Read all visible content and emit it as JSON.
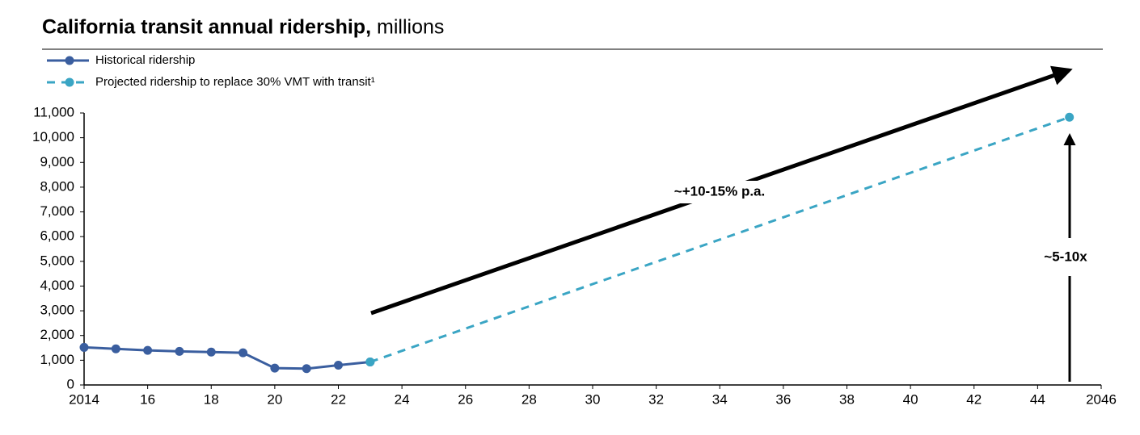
{
  "chart_data": {
    "type": "line",
    "title": "California transit annual ridership,",
    "subtitle": "millions",
    "xlim": [
      2014,
      2046
    ],
    "xticks": [
      2014,
      {
        "value": 2016,
        "label": "16"
      },
      {
        "value": 2018,
        "label": "18"
      },
      {
        "value": 2020,
        "label": "20"
      },
      {
        "value": 2022,
        "label": "22"
      },
      {
        "value": 2024,
        "label": "24"
      },
      {
        "value": 2026,
        "label": "26"
      },
      {
        "value": 2028,
        "label": "28"
      },
      {
        "value": 2030,
        "label": "30"
      },
      {
        "value": 2032,
        "label": "32"
      },
      {
        "value": 2034,
        "label": "34"
      },
      {
        "value": 2036,
        "label": "36"
      },
      {
        "value": 2038,
        "label": "38"
      },
      {
        "value": 2040,
        "label": "40"
      },
      {
        "value": 2042,
        "label": "42"
      },
      {
        "value": 2044,
        "label": "44"
      },
      2046
    ],
    "ylim": [
      0,
      11000
    ],
    "yticks": [
      0,
      {
        "value": 1000,
        "label": "1,000"
      },
      {
        "value": 2000,
        "label": "2,000"
      },
      {
        "value": 3000,
        "label": "3,000"
      },
      {
        "value": 4000,
        "label": "4,000"
      },
      {
        "value": 5000,
        "label": "5,000"
      },
      {
        "value": 6000,
        "label": "6,000"
      },
      {
        "value": 7000,
        "label": "7,000"
      },
      {
        "value": 8000,
        "label": "8,000"
      },
      {
        "value": 9000,
        "label": "9,000"
      },
      {
        "value": 10000,
        "label": "10,000"
      },
      {
        "value": 11000,
        "label": "11,000"
      }
    ],
    "grid": false,
    "series": [
      {
        "name": "Historical ridership",
        "color": "#3a5e9f",
        "dashed": false,
        "x": [
          2014,
          2015,
          2016,
          2017,
          2018,
          2019,
          2020,
          2021,
          2022,
          2023
        ],
        "values": [
          1520,
          1460,
          1400,
          1360,
          1330,
          1300,
          680,
          660,
          800,
          930
        ]
      },
      {
        "name": "Projected ridership to replace 30% VMT with transit¹",
        "color": "#3aa5c4",
        "dashed": true,
        "x": [
          2023,
          2045
        ],
        "values": [
          930,
          10830
        ]
      }
    ],
    "annotations": [
      "~+10-15% p.a.",
      "~5-10x"
    ]
  }
}
